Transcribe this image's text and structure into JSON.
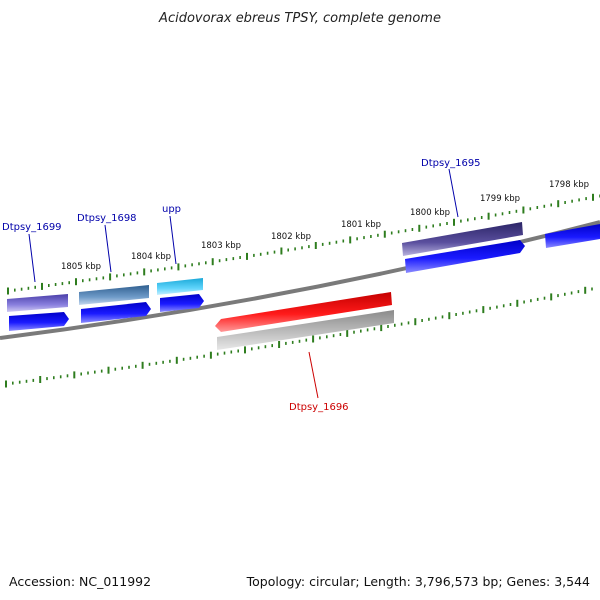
{
  "title": "Acidovorax ebreus TPSY, complete genome",
  "footer": {
    "accession": "Accession: NC_011992",
    "summary": "Topology: circular; Length: 3,796,573 bp; Genes: 3,544"
  },
  "scale_labels": [
    "1805 kbp",
    "1804 kbp",
    "1803 kbp",
    "1802 kbp",
    "1801 kbp",
    "1800 kbp",
    "1799 kbp",
    "1798 kbp"
  ],
  "genes": [
    {
      "name": "Dtpsy_1699",
      "color": "#0000aa"
    },
    {
      "name": "Dtpsy_1698",
      "color": "#0000aa"
    },
    {
      "name": "upp",
      "color": "#0000aa"
    },
    {
      "name": "Dtpsy_1696",
      "color": "#cc0000"
    },
    {
      "name": "Dtpsy_1695",
      "color": "#0000aa"
    }
  ],
  "colors": {
    "backbone": "#7a7a7a",
    "tick": "#2e7d1e",
    "cds_forward": "#0000ee",
    "cds_reverse": "#ee0000",
    "gene_reverse": "#b4b4b4"
  }
}
